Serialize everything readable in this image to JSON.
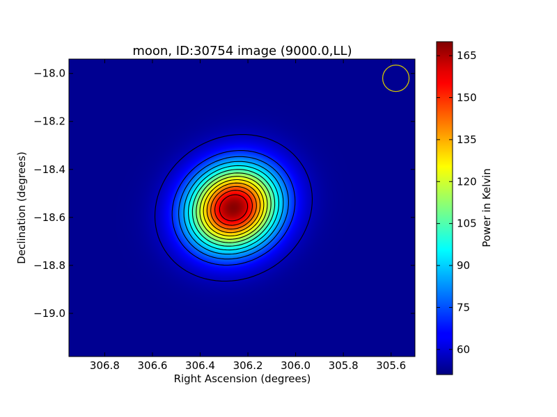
{
  "chart_data": {
    "type": "heatmap",
    "title": "moon, ID:30754 image (9000.0,LL)",
    "xlabel": "Right Ascension (degrees)",
    "ylabel": "Declination (degrees)",
    "colorbar_label": "Power in Kelvin",
    "xlim": [
      306.95,
      305.5
    ],
    "ylim": [
      -19.18,
      -17.94
    ],
    "x_ticks": [
      {
        "value": 306.8,
        "label": "306.8"
      },
      {
        "value": 306.6,
        "label": "306.6"
      },
      {
        "value": 306.4,
        "label": "306.4"
      },
      {
        "value": 306.2,
        "label": "306.2"
      },
      {
        "value": 306.0,
        "label": "306.0"
      },
      {
        "value": 305.8,
        "label": "305.8"
      },
      {
        "value": 305.6,
        "label": "305.6"
      }
    ],
    "y_ticks": [
      {
        "value": -18.0,
        "label": "−18.0"
      },
      {
        "value": -18.2,
        "label": "−18.2"
      },
      {
        "value": -18.4,
        "label": "−18.4"
      },
      {
        "value": -18.6,
        "label": "−18.6"
      },
      {
        "value": -18.8,
        "label": "−18.8"
      },
      {
        "value": -19.0,
        "label": "−19.0"
      }
    ],
    "colorbar_range": [
      51,
      170
    ],
    "colorbar_ticks": [
      {
        "value": 60,
        "label": "60"
      },
      {
        "value": 75,
        "label": "75"
      },
      {
        "value": 90,
        "label": "90"
      },
      {
        "value": 105,
        "label": "105"
      },
      {
        "value": 120,
        "label": "120"
      },
      {
        "value": 135,
        "label": "135"
      },
      {
        "value": 150,
        "label": "150"
      },
      {
        "value": 165,
        "label": "165"
      }
    ],
    "colormap": "jet",
    "source": {
      "center_ra": 306.26,
      "center_dec": -18.56,
      "peak_kelvin": 169,
      "background_kelvin": 53,
      "sigma_ra_deg": 0.135,
      "sigma_dec_deg": 0.118,
      "rotation_deg": -28
    },
    "contour_levels": [
      58,
      70,
      78,
      86,
      94,
      102,
      110,
      118,
      126,
      134,
      142,
      150,
      158
    ],
    "beam_marker": {
      "ra": 305.58,
      "dec": -18.02,
      "radius_deg": 0.055,
      "color": "#d4c800"
    },
    "grid": false
  }
}
